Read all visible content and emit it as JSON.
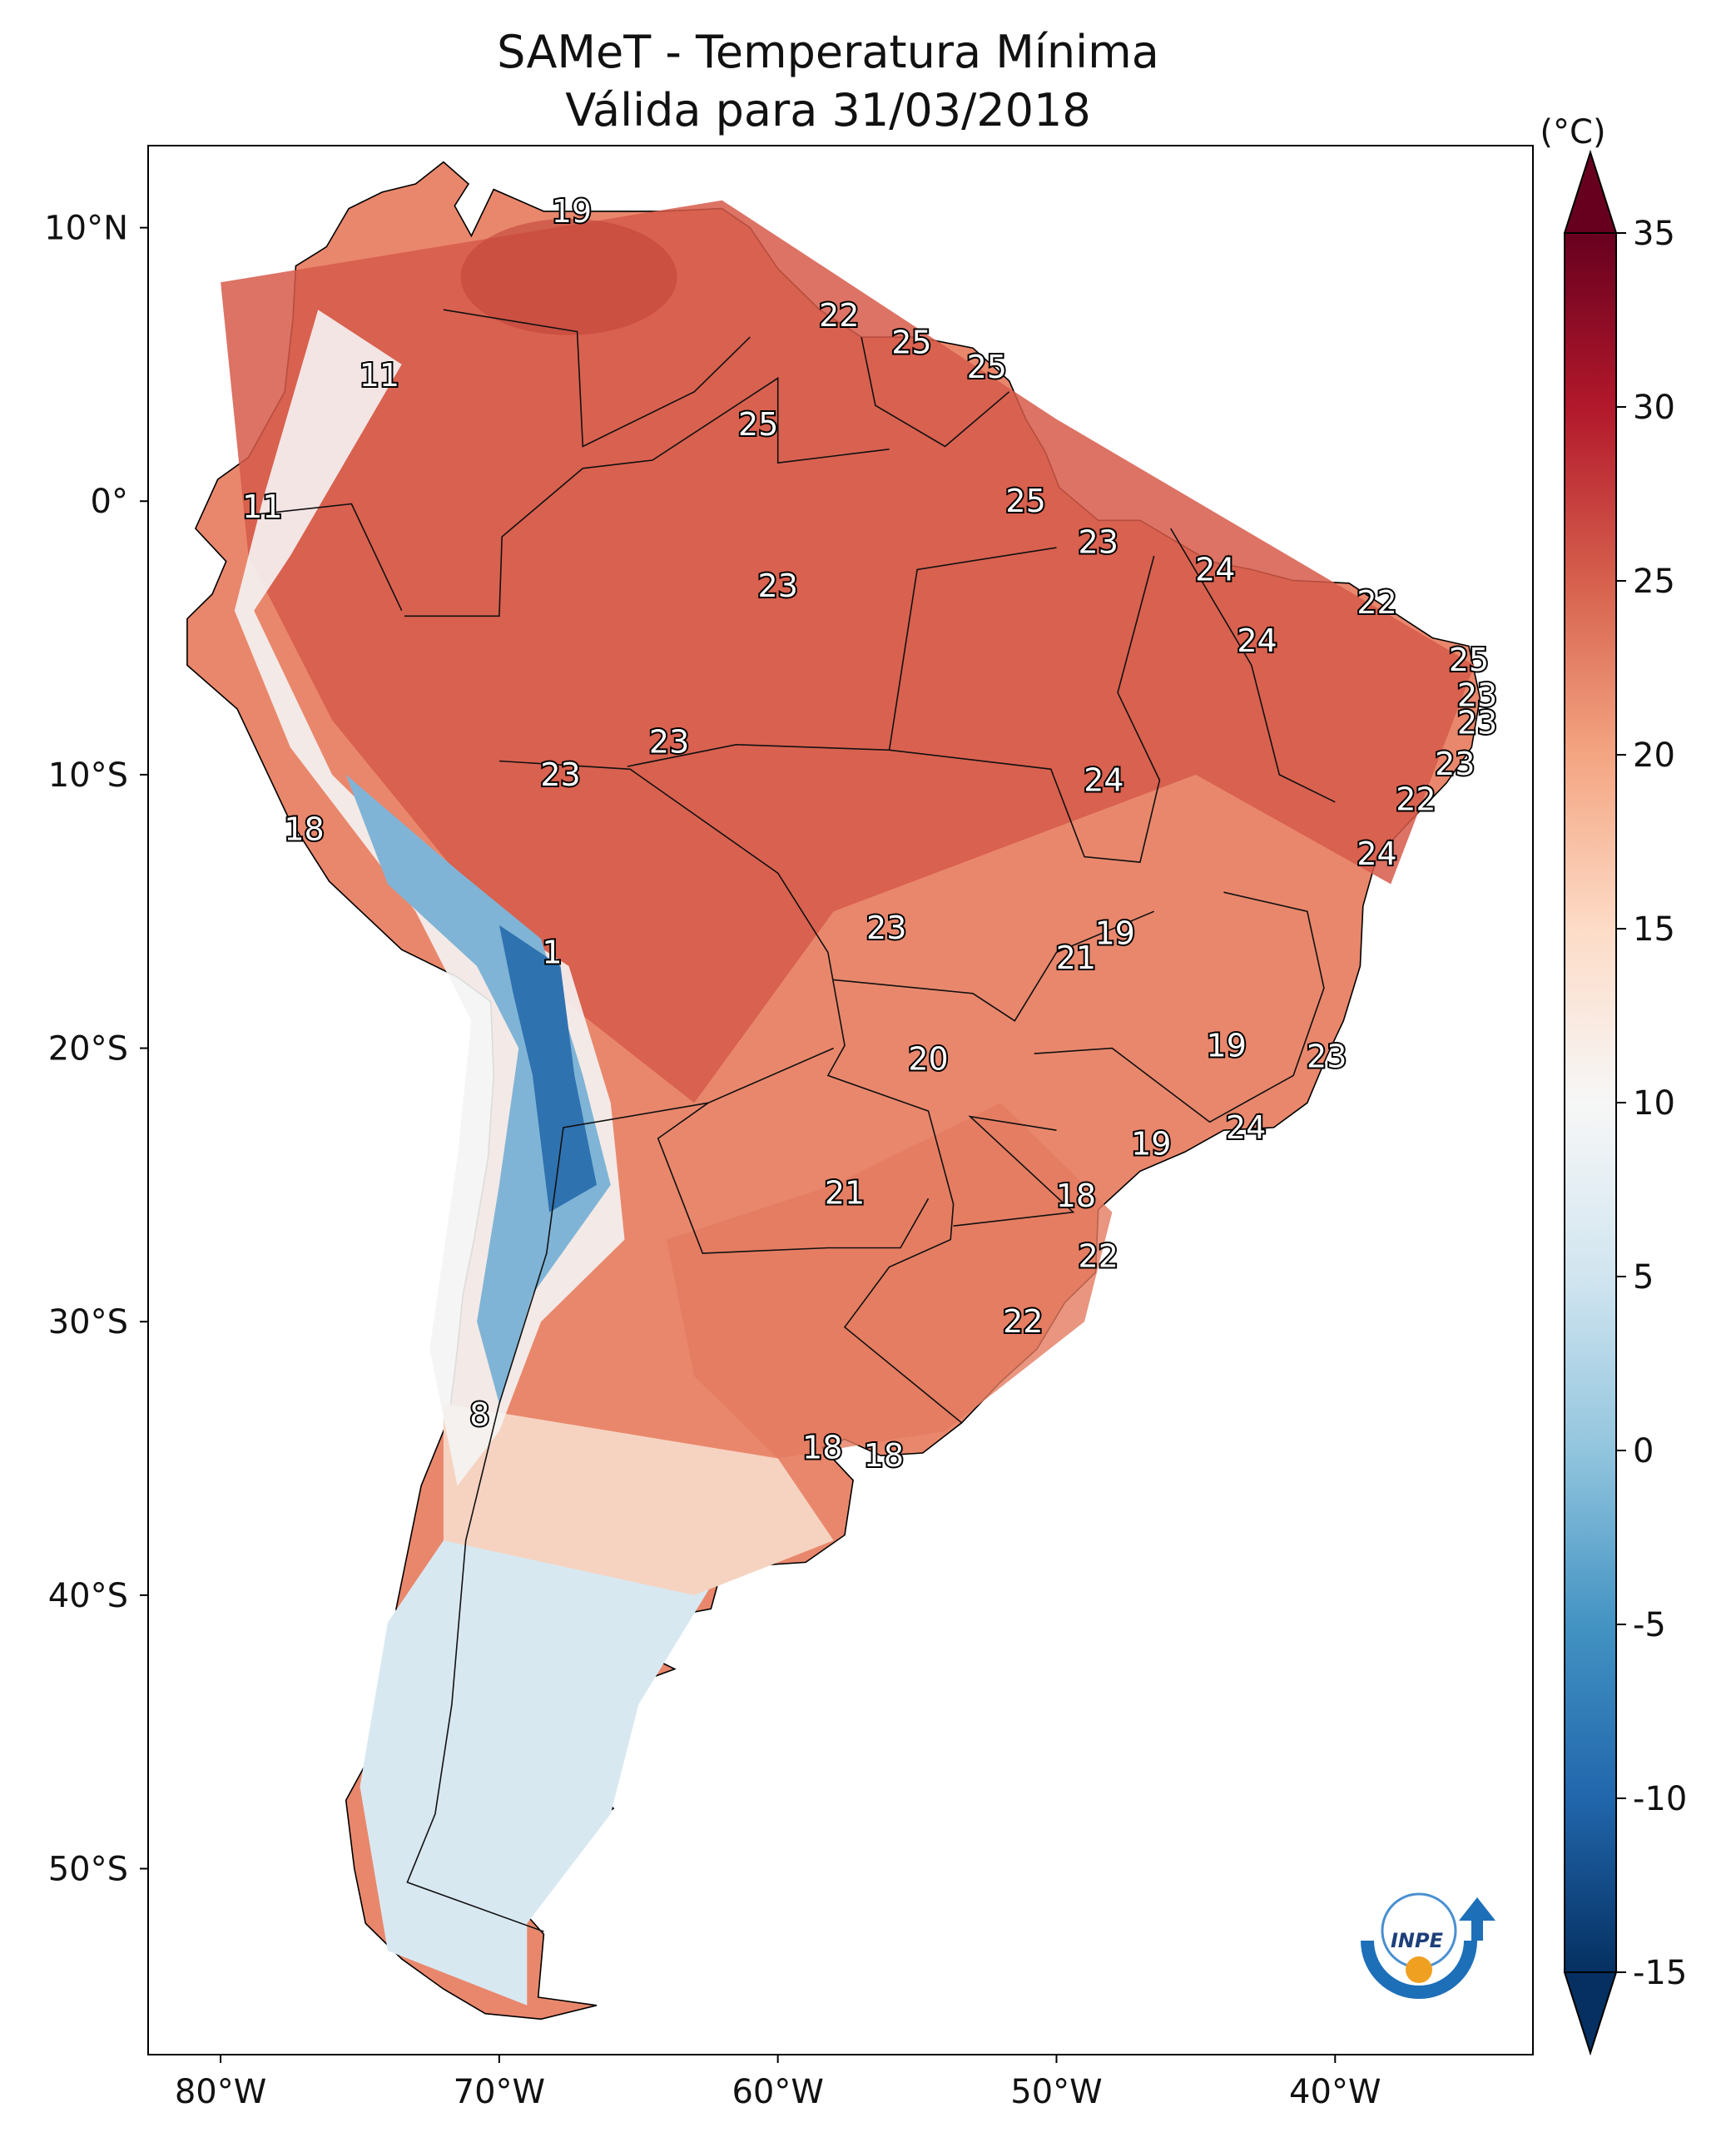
{
  "title": {
    "line1": "SAMeT - Temperatura Mínima",
    "line2": "Válida para 31/03/2018"
  },
  "map": {
    "lon_ticks": [
      {
        "lon": -80,
        "label": "80°W"
      },
      {
        "lon": -70,
        "label": "70°W"
      },
      {
        "lon": -60,
        "label": "60°W"
      },
      {
        "lon": -50,
        "label": "50°W"
      },
      {
        "lon": -40,
        "label": "40°W"
      }
    ],
    "lat_ticks": [
      {
        "lat": 10,
        "label": "10°N"
      },
      {
        "lat": 0,
        "label": "0°"
      },
      {
        "lat": -10,
        "label": "10°S"
      },
      {
        "lat": -20,
        "label": "20°S"
      },
      {
        "lat": -30,
        "label": "30°S"
      },
      {
        "lat": -40,
        "label": "40°S"
      },
      {
        "lat": -50,
        "label": "50°S"
      }
    ],
    "extent": {
      "lon_min": -82.6,
      "lon_max": -32.9,
      "lat_min": -56.8,
      "lat_max": 13.0
    },
    "city_values": [
      {
        "lon": -67.4,
        "lat": 10.6,
        "value": "19"
      },
      {
        "lon": -74.3,
        "lat": 4.6,
        "value": "11"
      },
      {
        "lon": -78.5,
        "lat": -0.2,
        "value": "11"
      },
      {
        "lon": -57.8,
        "lat": 6.8,
        "value": "22"
      },
      {
        "lon": -55.2,
        "lat": 5.8,
        "value": "25"
      },
      {
        "lon": -52.5,
        "lat": 4.9,
        "value": "25"
      },
      {
        "lon": -60.7,
        "lat": 2.8,
        "value": "25"
      },
      {
        "lon": -51.1,
        "lat": 0.0,
        "value": "25"
      },
      {
        "lon": -48.5,
        "lat": -1.5,
        "value": "23"
      },
      {
        "lon": -60.0,
        "lat": -3.1,
        "value": "23"
      },
      {
        "lon": -44.3,
        "lat": -2.5,
        "value": "24"
      },
      {
        "lon": -42.8,
        "lat": -5.1,
        "value": "24"
      },
      {
        "lon": -38.5,
        "lat": -3.7,
        "value": "22"
      },
      {
        "lon": -35.2,
        "lat": -5.8,
        "value": "25"
      },
      {
        "lon": -34.9,
        "lat": -7.1,
        "value": "23"
      },
      {
        "lon": -34.9,
        "lat": -8.1,
        "value": "23"
      },
      {
        "lon": -35.7,
        "lat": -9.6,
        "value": "23"
      },
      {
        "lon": -37.1,
        "lat": -10.9,
        "value": "22"
      },
      {
        "lon": -38.5,
        "lat": -12.9,
        "value": "24"
      },
      {
        "lon": -48.3,
        "lat": -10.2,
        "value": "24"
      },
      {
        "lon": -63.9,
        "lat": -8.8,
        "value": "23"
      },
      {
        "lon": -67.8,
        "lat": -10.0,
        "value": "23"
      },
      {
        "lon": -77.0,
        "lat": -12.0,
        "value": "18"
      },
      {
        "lon": -68.1,
        "lat": -16.5,
        "value": "1"
      },
      {
        "lon": -56.1,
        "lat": -15.6,
        "value": "23"
      },
      {
        "lon": -47.9,
        "lat": -15.8,
        "value": "19"
      },
      {
        "lon": -49.3,
        "lat": -16.7,
        "value": "21"
      },
      {
        "lon": -43.9,
        "lat": -19.9,
        "value": "19"
      },
      {
        "lon": -40.3,
        "lat": -20.3,
        "value": "23"
      },
      {
        "lon": -54.6,
        "lat": -20.4,
        "value": "20"
      },
      {
        "lon": -43.2,
        "lat": -22.9,
        "value": "24"
      },
      {
        "lon": -46.6,
        "lat": -23.5,
        "value": "19"
      },
      {
        "lon": -57.6,
        "lat": -25.3,
        "value": "21"
      },
      {
        "lon": -49.3,
        "lat": -25.4,
        "value": "18"
      },
      {
        "lon": -48.5,
        "lat": -27.6,
        "value": "22"
      },
      {
        "lon": -51.2,
        "lat": -30.0,
        "value": "22"
      },
      {
        "lon": -70.7,
        "lat": -33.4,
        "value": "8"
      },
      {
        "lon": -58.4,
        "lat": -34.6,
        "value": "18"
      },
      {
        "lon": -56.2,
        "lat": -34.9,
        "value": "18"
      }
    ]
  },
  "colorbar": {
    "unit": "(°C)",
    "min": -15,
    "max": 35,
    "ticks": [
      "35",
      "30",
      "25",
      "20",
      "15",
      "10",
      "5",
      "0",
      "-5",
      "-10",
      "-15"
    ],
    "colors": [
      "#053061",
      "#2166ac",
      "#4393c3",
      "#92c5de",
      "#d1e5f0",
      "#f7f7f7",
      "#fddbc7",
      "#f4a582",
      "#d6604d",
      "#b2182b",
      "#67001f"
    ]
  },
  "logo": {
    "text": "INPE"
  }
}
